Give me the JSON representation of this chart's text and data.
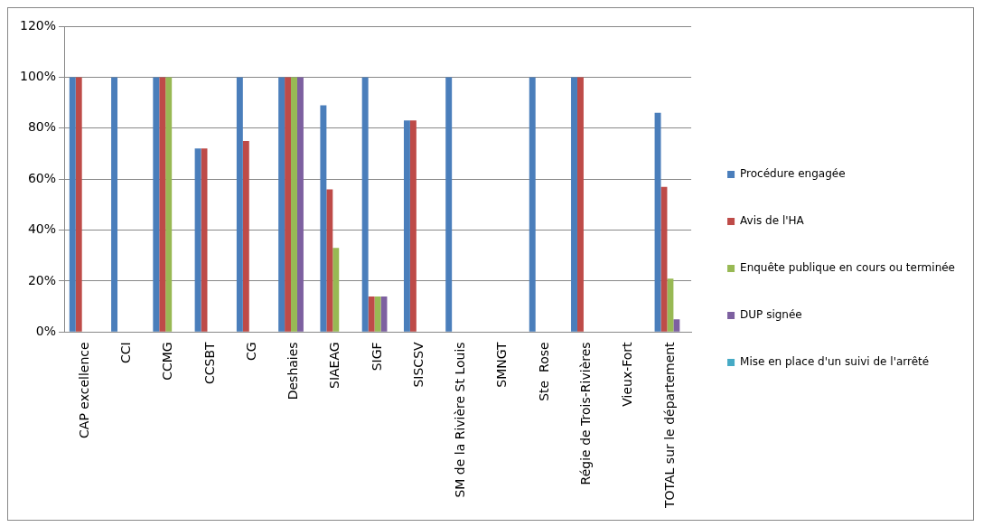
{
  "chart_data": {
    "type": "bar",
    "categories": [
      "CAP excellence",
      "CCI",
      "CCMG",
      "CCSBT",
      "CG",
      "Deshaies",
      "SIAEAG",
      "SIGF",
      "SISCSV",
      "SM de la Rivière St Louis",
      "SMNGT",
      "Ste  Rose",
      "Régie de Trois-Rivières",
      "Vieux-Fort",
      "TOTAL sur le département"
    ],
    "series": [
      {
        "name": "Procédure engagée",
        "color": "#4a7ebb",
        "values": [
          100,
          100,
          100,
          72,
          100,
          100,
          89,
          100,
          83,
          100,
          0,
          100,
          100,
          0,
          86
        ]
      },
      {
        "name": "Avis de l'HA",
        "color": "#be4b48",
        "values": [
          100,
          0,
          100,
          72,
          75,
          100,
          56,
          14,
          83,
          0,
          0,
          0,
          100,
          0,
          57
        ]
      },
      {
        "name": "Enquête publique en cours ou terminée",
        "color": "#98b954",
        "values": [
          0,
          0,
          100,
          0,
          0,
          100,
          33,
          14,
          0,
          0,
          0,
          0,
          0,
          0,
          21
        ]
      },
      {
        "name": "DUP signée",
        "color": "#7d60a0",
        "values": [
          0,
          0,
          0,
          0,
          0,
          100,
          0,
          14,
          0,
          0,
          0,
          0,
          0,
          0,
          5
        ]
      },
      {
        "name": "Mise en place d'un suivi de l'arrêté",
        "color": "#46aac5",
        "values": [
          0,
          0,
          0,
          0,
          0,
          0,
          0,
          0,
          0,
          0,
          0,
          0,
          0,
          0,
          0
        ]
      }
    ],
    "ylim": [
      0,
      120
    ],
    "yticks": [
      {
        "value": 0,
        "label": "0%"
      },
      {
        "value": 20,
        "label": "20%"
      },
      {
        "value": 40,
        "label": "40%"
      },
      {
        "value": 60,
        "label": "60%"
      },
      {
        "value": 80,
        "label": "80%"
      },
      {
        "value": 100,
        "label": "100%"
      },
      {
        "value": 120,
        "label": "120%"
      }
    ],
    "grid": "y",
    "legend": "right"
  }
}
